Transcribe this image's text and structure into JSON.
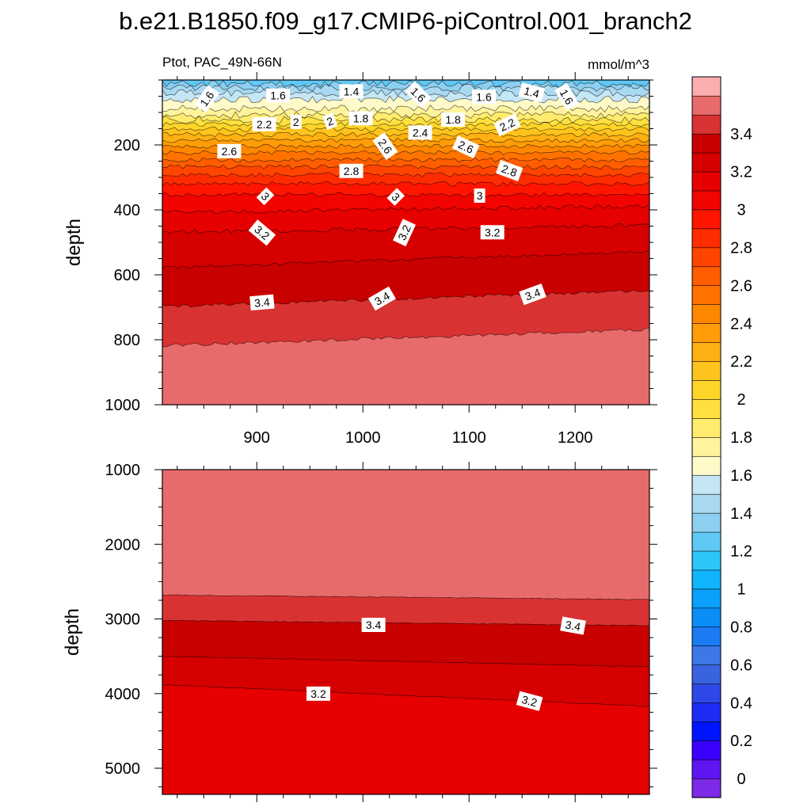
{
  "chart_data": [
    {
      "type": "contour",
      "title": "b.e21.B1850.f09_g17.CMIP6-piControl.001_branch2",
      "variable_label": "Ptot, PAC_49N-66N",
      "units_label": "mmol/m^3",
      "xlabel": "",
      "ylabel": "depth",
      "xlim": [
        811,
        1270
      ],
      "ylim": [
        1000,
        0
      ],
      "x_ticks": [
        900,
        1000,
        1100,
        1200
      ],
      "y_ticks": [
        200,
        400,
        600,
        800,
        1000
      ],
      "contour_labels": [
        {
          "text": "1.6",
          "x": 853,
          "y": 58,
          "angle": -55
        },
        {
          "text": "1.6",
          "x": 920,
          "y": 48,
          "angle": 0
        },
        {
          "text": "1.4",
          "x": 989,
          "y": 35,
          "angle": 0
        },
        {
          "text": "1.6",
          "x": 1052,
          "y": 45,
          "angle": 45
        },
        {
          "text": "1.6",
          "x": 1114,
          "y": 52,
          "angle": 0
        },
        {
          "text": "1.4",
          "x": 1159,
          "y": 38,
          "angle": 15
        },
        {
          "text": "1.6",
          "x": 1192,
          "y": 52,
          "angle": 60
        },
        {
          "text": "2.2",
          "x": 907,
          "y": 136,
          "angle": 0
        },
        {
          "text": "2",
          "x": 937,
          "y": 129,
          "angle": 0
        },
        {
          "text": "2",
          "x": 969,
          "y": 127,
          "angle": -20
        },
        {
          "text": "1.8",
          "x": 998,
          "y": 118,
          "angle": 0
        },
        {
          "text": "1.8",
          "x": 1085,
          "y": 122,
          "angle": 0
        },
        {
          "text": "2.2",
          "x": 1136,
          "y": 138,
          "angle": -25
        },
        {
          "text": "2.6",
          "x": 874,
          "y": 219,
          "angle": 0
        },
        {
          "text": "2.4",
          "x": 1054,
          "y": 162,
          "angle": 0
        },
        {
          "text": "2.6",
          "x": 1021,
          "y": 204,
          "angle": 55
        },
        {
          "text": "2.6",
          "x": 1097,
          "y": 206,
          "angle": 25
        },
        {
          "text": "2.8",
          "x": 989,
          "y": 280,
          "angle": 0
        },
        {
          "text": "2.8",
          "x": 1138,
          "y": 279,
          "angle": 20
        },
        {
          "text": "3",
          "x": 908,
          "y": 358,
          "angle": 45
        },
        {
          "text": "3",
          "x": 1031,
          "y": 360,
          "angle": 45
        },
        {
          "text": "3",
          "x": 1110,
          "y": 356,
          "angle": 0
        },
        {
          "text": "3.2",
          "x": 905,
          "y": 470,
          "angle": 40
        },
        {
          "text": "3.2",
          "x": 1039,
          "y": 470,
          "angle": -65
        },
        {
          "text": "3.2",
          "x": 1122,
          "y": 469,
          "angle": 0
        },
        {
          "text": "3.4",
          "x": 905,
          "y": 685,
          "angle": -5
        },
        {
          "text": "3.4",
          "x": 1018,
          "y": 673,
          "angle": -30
        },
        {
          "text": "3.4",
          "x": 1160,
          "y": 660,
          "angle": -20
        }
      ]
    },
    {
      "type": "contour",
      "title": "",
      "xlabel": "",
      "ylabel": "depth",
      "xlim": [
        811,
        1270
      ],
      "ylim": [
        5350,
        1000
      ],
      "x_ticks": [
        900,
        1000,
        1100,
        1200
      ],
      "y_ticks": [
        1000,
        2000,
        3000,
        4000,
        5000
      ],
      "contour_labels": [
        {
          "text": "3.4",
          "x": 1010,
          "y": 3080,
          "angle": 0
        },
        {
          "text": "3.4",
          "x": 1198,
          "y": 3090,
          "angle": 10
        },
        {
          "text": "3.2",
          "x": 958,
          "y": 4000,
          "angle": 0
        },
        {
          "text": "3.2",
          "x": 1157,
          "y": 4100,
          "angle": 15
        }
      ]
    }
  ],
  "colorbar": {
    "levels": [
      "-0.1",
      "0",
      "0.1",
      "0.2",
      "0.3",
      "0.4",
      "0.5",
      "0.6",
      "0.7",
      "0.8",
      "0.9",
      "1",
      "1.1",
      "1.2",
      "1.3",
      "1.4",
      "1.5",
      "1.6",
      "1.7",
      "1.8",
      "1.9",
      "2",
      "2.1",
      "2.2",
      "2.3",
      "2.4",
      "2.5",
      "2.6",
      "2.7",
      "2.8",
      "2.9",
      "3",
      "3.1",
      "3.2",
      "3.3",
      "3.4",
      "3.5",
      "3.6"
    ],
    "tick_labels": [
      "0",
      "0.2",
      "0.4",
      "0.6",
      "0.8",
      "1",
      "1.2",
      "1.4",
      "1.6",
      "1.8",
      "2",
      "2.2",
      "2.4",
      "2.6",
      "2.8",
      "3",
      "3.2",
      "3.4"
    ],
    "colors": [
      "#7d2ae8",
      "#5f14f2",
      "#3a00ff",
      "#0015ff",
      "#1c2cf5",
      "#2e48e8",
      "#3a63e0",
      "#3d78e6",
      "#1a7bf3",
      "#0a8ef8",
      "#0aa0fb",
      "#10b4fb",
      "#2cc6fa",
      "#60c8f4",
      "#8dcff0",
      "#a9d9f1",
      "#c5e6f4",
      "#fffac7",
      "#fff39d",
      "#ffeb6e",
      "#ffe03e",
      "#ffd428",
      "#ffc31d",
      "#ffb012",
      "#ff9c08",
      "#ff8700",
      "#ff7200",
      "#ff5d00",
      "#ff4500",
      "#ff2c00",
      "#ff1500",
      "#f20400",
      "#e60000",
      "#d70000",
      "#c90000",
      "#d93232",
      "#e86b6b",
      "#fbadaf"
    ]
  }
}
